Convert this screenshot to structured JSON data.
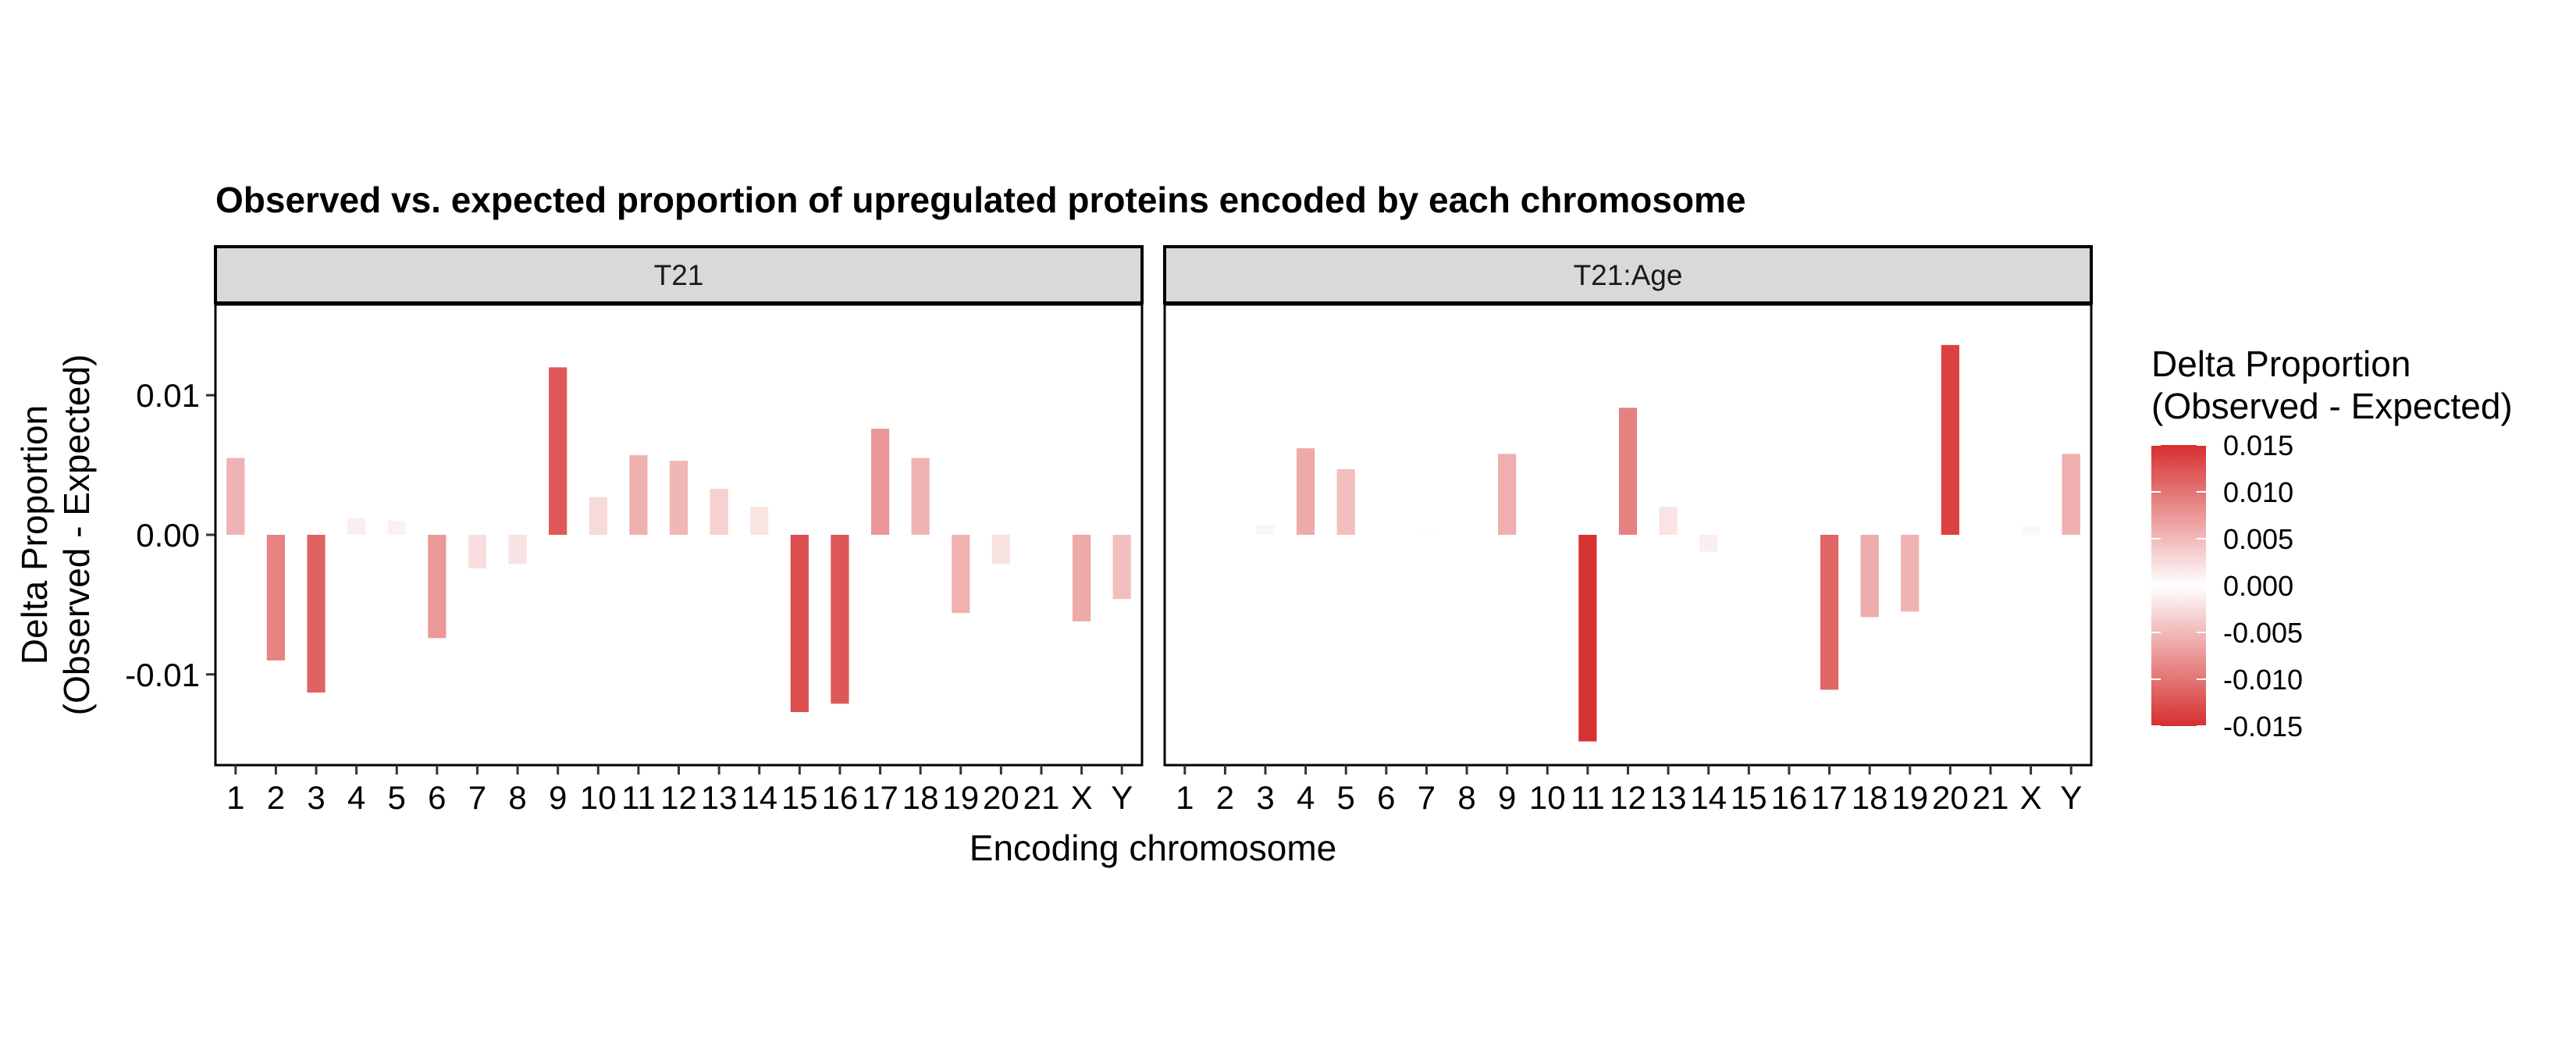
{
  "chart_data": {
    "type": "bar",
    "title": "Observed vs. expected proportion of upregulated proteins encoded by each chromosome",
    "xlabel": "Encoding chromosome",
    "ylabel_line1": "Delta Proportion",
    "ylabel_line2": "(Observed - Expected)",
    "ylim": [
      -0.0165,
      0.0165
    ],
    "yticks": [
      {
        "value": 0.01,
        "label": "0.01"
      },
      {
        "value": 0.0,
        "label": "0.00"
      },
      {
        "value": -0.01,
        "label": "-0.01"
      }
    ],
    "categories": [
      "1",
      "2",
      "3",
      "4",
      "5",
      "6",
      "7",
      "8",
      "9",
      "10",
      "11",
      "12",
      "13",
      "14",
      "15",
      "16",
      "17",
      "18",
      "19",
      "20",
      "21",
      "X",
      "Y"
    ],
    "grid": false,
    "legend_position": "right",
    "legend": {
      "title_line1": "Delta Proportion",
      "title_line2": "(Observed - Expected)",
      "ticks": [
        {
          "value": 0.015,
          "label": "0.015"
        },
        {
          "value": 0.01,
          "label": "0.010"
        },
        {
          "value": 0.005,
          "label": "0.005"
        },
        {
          "value": 0.0,
          "label": "0.000"
        },
        {
          "value": -0.005,
          "label": "-0.005"
        },
        {
          "value": -0.01,
          "label": "-0.010"
        },
        {
          "value": -0.015,
          "label": "-0.015"
        }
      ]
    },
    "colors": {
      "extreme": "#d62f2f",
      "mid": "#ffffff",
      "strip_fill": "#d9d9d9",
      "frame": "#000000"
    },
    "panels": [
      {
        "name": "T21",
        "values": [
          0.0055,
          -0.009,
          -0.0113,
          0.0012,
          0.001,
          -0.0074,
          -0.0024,
          -0.0021,
          0.012,
          0.0027,
          0.0057,
          0.0053,
          0.0033,
          0.002,
          -0.0127,
          -0.0121,
          0.0076,
          0.0055,
          -0.0056,
          -0.0021,
          0.0,
          -0.0062,
          -0.0046
        ]
      },
      {
        "name": "T21:Age",
        "values": [
          0.0,
          0.0,
          0.0007,
          0.0062,
          0.0047,
          0.0,
          0.0002,
          0.0,
          0.0058,
          0.0,
          -0.0148,
          0.0091,
          0.002,
          -0.0012,
          0.0,
          0.0,
          -0.0111,
          -0.0059,
          -0.0055,
          0.0136,
          0.0,
          0.0006,
          0.0058
        ]
      }
    ]
  }
}
